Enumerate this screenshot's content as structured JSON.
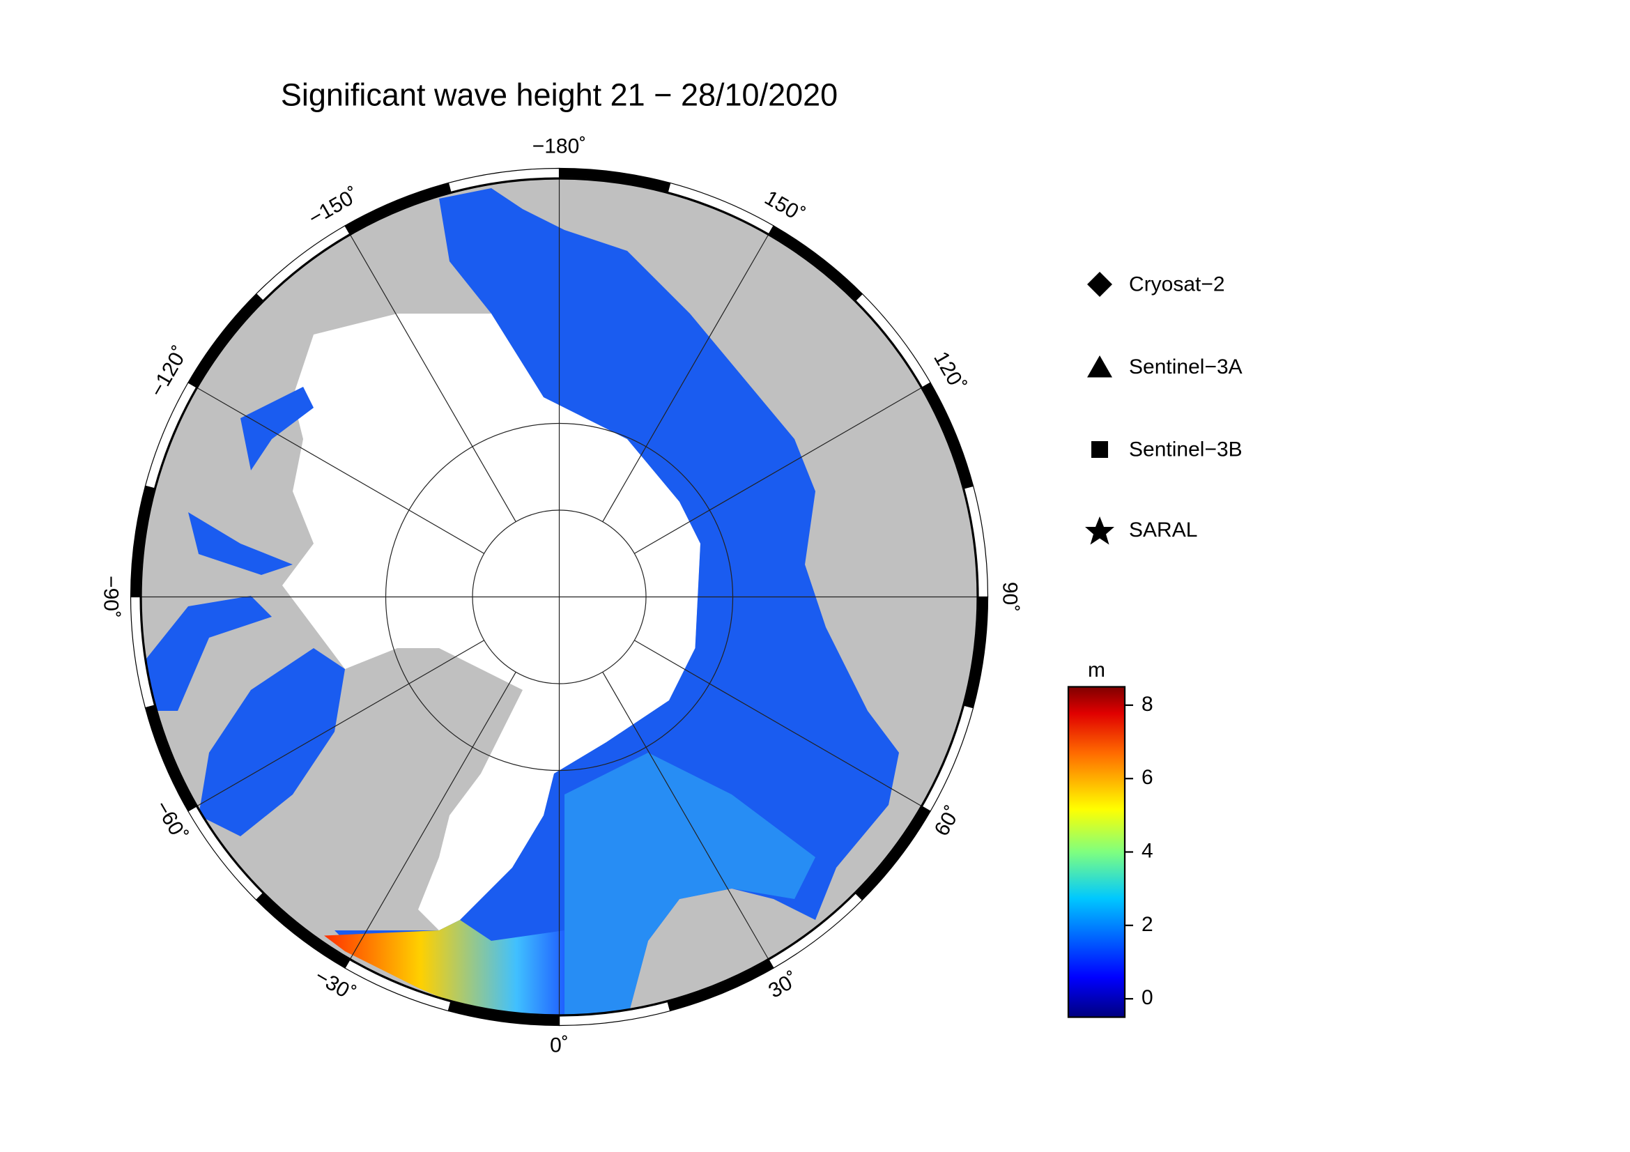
{
  "title": "Significant wave height 21 − 28/10/2020",
  "longitude_labels": [
    "−180˚",
    "150˚",
    "120˚",
    "90˚",
    "60˚",
    "30˚",
    "0˚",
    "−30˚",
    "−60˚",
    "−90˚",
    "−120˚",
    "−150˚"
  ],
  "legend": [
    "Cryosat−2",
    "Sentinel−3A",
    "Sentinel−3B",
    "SARAL"
  ],
  "colorbar": {
    "unit": "m",
    "range": [
      -0.5,
      8.5
    ],
    "ticks": [
      0,
      2,
      4,
      6,
      8
    ]
  }
}
